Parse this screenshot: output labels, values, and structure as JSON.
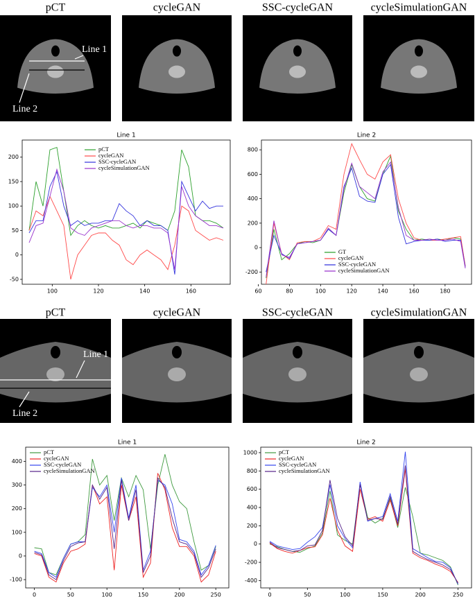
{
  "image_rows": [
    {
      "titles": [
        "pCT",
        "cycleGAN",
        "SSC-cycleGAN",
        "cycleSimulationGAN"
      ],
      "annotations": [
        "Line 1",
        "Line 2"
      ]
    },
    {
      "titles": [
        "pCT",
        "cycleGAN",
        "SSC-cycleGAN",
        "cycleSimulationGAN"
      ],
      "annotations": [
        "Line 1",
        "Line 2"
      ]
    }
  ],
  "chart_data": [
    {
      "type": "line",
      "title": "Line 1",
      "legend": "upper center",
      "x": [
        90,
        93,
        96,
        99,
        102,
        105,
        108,
        111,
        114,
        117,
        120,
        123,
        126,
        129,
        132,
        135,
        138,
        141,
        144,
        147,
        150,
        153,
        156,
        159,
        162,
        165,
        168,
        171,
        174
      ],
      "xlim": [
        87,
        177
      ],
      "xticks": [
        100,
        120,
        140,
        160
      ],
      "ylim": [
        -60,
        235
      ],
      "yticks": [
        -50,
        0,
        50,
        100,
        150,
        200
      ],
      "series": [
        {
          "name": "pCT",
          "color": "#2ca02c",
          "values": [
            50,
            150,
            100,
            215,
            220,
            130,
            40,
            60,
            70,
            60,
            55,
            60,
            55,
            55,
            60,
            65,
            55,
            70,
            65,
            60,
            50,
            90,
            215,
            180,
            80,
            70,
            70,
            65,
            55
          ]
        },
        {
          "name": "cycleGAN",
          "color": "#ff4a4a",
          "values": [
            50,
            90,
            80,
            120,
            90,
            60,
            -50,
            0,
            20,
            40,
            45,
            45,
            30,
            20,
            -10,
            -20,
            0,
            10,
            0,
            -10,
            -30,
            20,
            100,
            90,
            50,
            40,
            30,
            35,
            30
          ]
        },
        {
          "name": "SSC-cycleGAN",
          "color": "#3333dd",
          "values": [
            45,
            70,
            70,
            140,
            170,
            100,
            60,
            70,
            60,
            65,
            65,
            70,
            70,
            105,
            90,
            80,
            60,
            70,
            60,
            60,
            50,
            -40,
            150,
            120,
            90,
            110,
            95,
            100,
            100
          ]
        },
        {
          "name": "cycleSimulationGAN",
          "color": "#9933cc",
          "values": [
            25,
            60,
            65,
            120,
            175,
            130,
            55,
            45,
            40,
            55,
            60,
            65,
            70,
            70,
            60,
            55,
            60,
            60,
            55,
            55,
            45,
            -30,
            140,
            100,
            80,
            70,
            60,
            60,
            55
          ]
        }
      ]
    },
    {
      "type": "line",
      "title": "Line 2",
      "legend": "lower center",
      "x": [
        65,
        70,
        75,
        80,
        85,
        90,
        95,
        100,
        105,
        110,
        115,
        120,
        125,
        130,
        135,
        140,
        145,
        150,
        155,
        160,
        165,
        170,
        175,
        180,
        185,
        190,
        193
      ],
      "xlim": [
        62,
        197
      ],
      "xticks": [
        60,
        80,
        100,
        120,
        140,
        160,
        180
      ],
      "ylim": [
        -300,
        880
      ],
      "yticks": [
        -200,
        0,
        200,
        400,
        600,
        800
      ],
      "series": [
        {
          "name": "GT",
          "color": "#2ca02c",
          "values": [
            -250,
            150,
            -100,
            -50,
            30,
            50,
            40,
            60,
            150,
            100,
            450,
            680,
            500,
            400,
            380,
            600,
            750,
            300,
            150,
            60,
            70,
            60,
            70,
            60,
            80,
            70,
            -150
          ]
        },
        {
          "name": "cycleGAN",
          "color": "#ff4a4a",
          "values": [
            -300,
            200,
            -50,
            -100,
            40,
            50,
            50,
            80,
            180,
            150,
            600,
            850,
            720,
            600,
            560,
            700,
            760,
            400,
            200,
            80,
            60,
            60,
            60,
            70,
            80,
            90,
            -150
          ]
        },
        {
          "name": "SSC-cycleGAN",
          "color": "#3333dd",
          "values": [
            -200,
            100,
            -50,
            -90,
            30,
            40,
            50,
            60,
            150,
            100,
            500,
            650,
            420,
            380,
            370,
            600,
            680,
            250,
            30,
            50,
            60,
            60,
            70,
            50,
            60,
            60,
            -160
          ]
        },
        {
          "name": "cycleSimulationGAN",
          "color": "#9933cc",
          "values": [
            -240,
            220,
            -60,
            -80,
            30,
            40,
            50,
            60,
            160,
            100,
            480,
            690,
            500,
            450,
            400,
            620,
            700,
            330,
            100,
            60,
            60,
            70,
            60,
            60,
            70,
            50,
            -170
          ]
        }
      ]
    },
    {
      "type": "line",
      "title": "Line 1",
      "legend": "upper left",
      "x": [
        0,
        10,
        20,
        30,
        40,
        50,
        60,
        70,
        80,
        90,
        100,
        110,
        120,
        130,
        140,
        150,
        160,
        170,
        180,
        190,
        200,
        210,
        220,
        230,
        240,
        250
      ],
      "xlim": [
        -12,
        268
      ],
      "xticks": [
        0,
        50,
        100,
        150,
        200,
        250
      ],
      "ylim": [
        -135,
        460
      ],
      "yticks": [
        -100,
        0,
        100,
        200,
        300,
        400
      ],
      "series": [
        {
          "name": "pCT",
          "color": "#3f9a3f",
          "values": [
            35,
            30,
            -70,
            -80,
            -10,
            50,
            60,
            90,
            410,
            300,
            340,
            150,
            330,
            250,
            340,
            280,
            30,
            300,
            430,
            300,
            230,
            200,
            60,
            -60,
            -40,
            40
          ]
        },
        {
          "name": "cycleGAN",
          "color": "#ee2222",
          "values": [
            10,
            0,
            -90,
            -110,
            -30,
            20,
            30,
            50,
            300,
            220,
            250,
            -60,
            300,
            150,
            250,
            -90,
            -30,
            350,
            280,
            120,
            40,
            40,
            0,
            -110,
            -80,
            20
          ]
        },
        {
          "name": "SSC-cycleGAN",
          "color": "#3344ee",
          "values": [
            20,
            10,
            -70,
            -90,
            -10,
            50,
            60,
            60,
            290,
            250,
            300,
            100,
            330,
            160,
            300,
            -60,
            20,
            320,
            300,
            220,
            70,
            60,
            20,
            -80,
            -40,
            45
          ]
        },
        {
          "name": "cycleSimulationGAN",
          "color": "#552288",
          "values": [
            15,
            5,
            -80,
            -100,
            -20,
            40,
            55,
            60,
            300,
            240,
            290,
            30,
            320,
            150,
            280,
            -70,
            0,
            330,
            290,
            160,
            60,
            50,
            10,
            -90,
            -50,
            30
          ]
        }
      ]
    },
    {
      "type": "line",
      "title": "Line 2",
      "legend": "upper left",
      "x": [
        0,
        10,
        20,
        30,
        40,
        50,
        60,
        70,
        80,
        90,
        100,
        110,
        120,
        130,
        140,
        150,
        160,
        170,
        180,
        190,
        200,
        210,
        220,
        230,
        240,
        250
      ],
      "xlim": [
        -12,
        268
      ],
      "xticks": [
        0,
        50,
        100,
        150,
        200,
        250
      ],
      "ylim": [
        -480,
        1060
      ],
      "yticks": [
        -400,
        -200,
        0,
        200,
        400,
        600,
        800,
        1000
      ],
      "series": [
        {
          "name": "pCT",
          "color": "#3f9a3f",
          "values": [
            0,
            -30,
            -60,
            -80,
            -90,
            -50,
            -20,
            120,
            580,
            100,
            40,
            0,
            660,
            290,
            230,
            280,
            500,
            180,
            620,
            300,
            -100,
            -120,
            -150,
            -180,
            -250,
            -450
          ]
        },
        {
          "name": "cycleGAN",
          "color": "#ee2222",
          "values": [
            10,
            -50,
            -80,
            -100,
            -70,
            -40,
            -30,
            100,
            500,
            150,
            -20,
            -80,
            600,
            270,
            300,
            250,
            480,
            200,
            820,
            -100,
            -150,
            -180,
            -220,
            -250,
            -300,
            -420
          ]
        },
        {
          "name": "SSC-cycleGAN",
          "color": "#3344ee",
          "values": [
            30,
            -20,
            -40,
            -60,
            -50,
            20,
            80,
            180,
            650,
            200,
            60,
            -40,
            680,
            250,
            280,
            300,
            550,
            250,
            1010,
            -50,
            -100,
            -150,
            -190,
            -200,
            -260,
            -440
          ]
        },
        {
          "name": "cycleSimulationGAN",
          "color": "#552288",
          "values": [
            20,
            -40,
            -60,
            -80,
            -70,
            -20,
            -10,
            150,
            700,
            280,
            80,
            -20,
            650,
            260,
            280,
            270,
            520,
            220,
            860,
            -80,
            -130,
            -170,
            -200,
            -230,
            -280,
            -430
          ]
        }
      ]
    }
  ]
}
